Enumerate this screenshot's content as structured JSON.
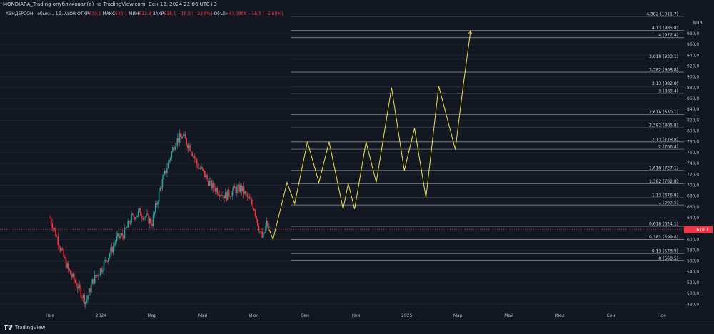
{
  "header": {
    "published": "MONDIARA_Trading опубликовал(а) на TradingView.com, Сен 12, 2024 22:06 UTC+3",
    "symbol": "ХЭНДЕРСОН - обыкн., 1Д, ALOR",
    "open_label": "ОТКР",
    "open": "630,1",
    "high_label": "МАКС",
    "high": "630,1",
    "low_label": "МИН",
    "low": "612,8",
    "close_label": "ЗАКР",
    "close": "618,1",
    "change": "−18,3 (−2,88%)",
    "volume_label": "Объём",
    "volume": "43,088K",
    "volume_change": "−18,3 (−2,88%)"
  },
  "currency": "RUB",
  "footer": {
    "brand": "TradingView"
  },
  "colors": {
    "background": "#131722",
    "up": "#26a69a",
    "down": "#f23645",
    "projection": "#e8e04a",
    "fib": "#9598a1",
    "price_tag": "#f23645",
    "axis_text": "#b2b5be"
  },
  "chart_data": {
    "type": "candlestick",
    "y_axis": {
      "range": [
        470,
        1030
      ],
      "ticks": [
        "480,0",
        "500,0",
        "520,0",
        "540,0",
        "560,0",
        "580,0",
        "600,0",
        "620,0",
        "640,0",
        "660,0",
        "680,0",
        "700,0",
        "720,0",
        "740,0",
        "760,0",
        "780,0",
        "800,0",
        "820,0",
        "840,0",
        "860,0",
        "880,0",
        "900,0",
        "920,0",
        "940,0",
        "960,0",
        "980,0"
      ]
    },
    "x_axis": {
      "labels": [
        "Ноя",
        "2024",
        "Мар",
        "Май",
        "Июл",
        "Сен",
        "Ноя",
        "2025",
        "Мар",
        "Май",
        "Июл",
        "Сен",
        "Ноя"
      ]
    },
    "last_price": "618,1",
    "fib_levels": [
      {
        "label": "0 (560,5)",
        "value": 560.5
      },
      {
        "label": "0,13 (573,9)",
        "value": 573.9
      },
      {
        "label": "0,382 (599,8)",
        "value": 599.8
      },
      {
        "label": "0,618 (624,1)",
        "value": 624.1
      },
      {
        "label": "1 (663,5)",
        "value": 663.5
      },
      {
        "label": "1,13 (676,8)",
        "value": 676.8
      },
      {
        "label": "1,382 (702,8)",
        "value": 702.8
      },
      {
        "label": "1,618 (727,1)",
        "value": 727.1
      },
      {
        "label": "2 (766,4)",
        "value": 766.4
      },
      {
        "label": "2,13 (779,8)",
        "value": 779.8
      },
      {
        "label": "2,382 (805,8)",
        "value": 805.8
      },
      {
        "label": "2,618 (830,1)",
        "value": 830.1
      },
      {
        "label": "3 (869,4)",
        "value": 869.4
      },
      {
        "label": "3,13 (882,8)",
        "value": 882.8
      },
      {
        "label": "3,382 (908,8)",
        "value": 908.8
      },
      {
        "label": "3,618 (933,1)",
        "value": 933.1
      },
      {
        "label": "4 (972,4)",
        "value": 972.4
      },
      {
        "label": "4,13 (985,8)",
        "value": 985.8
      },
      {
        "label": "4,382 (1011,7)",
        "value": 1011.7
      }
    ],
    "price_path": [
      {
        "m": 0.0,
        "v": 640
      },
      {
        "m": 0.3,
        "v": 600
      },
      {
        "m": 0.7,
        "v": 545
      },
      {
        "m": 1.0,
        "v": 520
      },
      {
        "m": 1.4,
        "v": 485
      },
      {
        "m": 1.7,
        "v": 525
      },
      {
        "m": 2.0,
        "v": 545
      },
      {
        "m": 2.3,
        "v": 570
      },
      {
        "m": 2.6,
        "v": 600
      },
      {
        "m": 2.9,
        "v": 610
      },
      {
        "m": 3.2,
        "v": 640
      },
      {
        "m": 3.5,
        "v": 650
      },
      {
        "m": 3.8,
        "v": 640
      },
      {
        "m": 4.0,
        "v": 630
      },
      {
        "m": 4.3,
        "v": 690
      },
      {
        "m": 4.6,
        "v": 735
      },
      {
        "m": 4.9,
        "v": 780
      },
      {
        "m": 5.2,
        "v": 790
      },
      {
        "m": 5.5,
        "v": 770
      },
      {
        "m": 5.8,
        "v": 735
      },
      {
        "m": 6.0,
        "v": 725
      },
      {
        "m": 6.3,
        "v": 700
      },
      {
        "m": 6.6,
        "v": 690
      },
      {
        "m": 6.9,
        "v": 680
      },
      {
        "m": 7.2,
        "v": 690
      },
      {
        "m": 7.5,
        "v": 695
      },
      {
        "m": 7.7,
        "v": 680
      },
      {
        "m": 8.0,
        "v": 660
      },
      {
        "m": 8.2,
        "v": 620
      },
      {
        "m": 8.35,
        "v": 600
      },
      {
        "m": 8.5,
        "v": 630
      },
      {
        "m": 8.6,
        "v": 618
      }
    ],
    "projection": [
      {
        "m": 8.6,
        "v": 618
      },
      {
        "m": 8.75,
        "v": 600
      },
      {
        "m": 9.3,
        "v": 705
      },
      {
        "m": 9.6,
        "v": 666
      },
      {
        "m": 10.1,
        "v": 780
      },
      {
        "m": 10.55,
        "v": 705
      },
      {
        "m": 10.95,
        "v": 780
      },
      {
        "m": 11.5,
        "v": 656
      },
      {
        "m": 11.7,
        "v": 703
      },
      {
        "m": 11.95,
        "v": 656
      },
      {
        "m": 12.4,
        "v": 780
      },
      {
        "m": 12.8,
        "v": 705
      },
      {
        "m": 13.4,
        "v": 880
      },
      {
        "m": 13.9,
        "v": 727
      },
      {
        "m": 14.3,
        "v": 805
      },
      {
        "m": 14.75,
        "v": 677
      },
      {
        "m": 15.25,
        "v": 883
      },
      {
        "m": 15.9,
        "v": 766
      },
      {
        "m": 16.2,
        "v": 880
      },
      {
        "m": 16.5,
        "v": 985
      }
    ]
  }
}
